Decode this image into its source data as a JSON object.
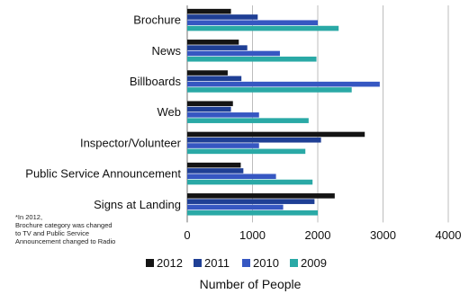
{
  "chart_data": {
    "type": "bar",
    "orientation": "horizontal",
    "categories": [
      "Brochure",
      "News",
      "Billboards",
      "Web",
      "Inspector/Volunteer",
      "Public Service Announcement",
      "Signs at Landing"
    ],
    "series": [
      {
        "name": "2012",
        "color": "#141414",
        "values": [
          670,
          790,
          620,
          700,
          2720,
          820,
          2260
        ]
      },
      {
        "name": "2011",
        "color": "#1f3f95",
        "values": [
          1080,
          920,
          830,
          670,
          2050,
          860,
          1950
        ]
      },
      {
        "name": "2010",
        "color": "#3657c2",
        "values": [
          2000,
          1420,
          2950,
          1100,
          1100,
          1360,
          1470
        ]
      },
      {
        "name": "2009",
        "color": "#2aa9a6",
        "values": [
          2320,
          1980,
          2520,
          1860,
          1810,
          1920,
          2000
        ]
      }
    ],
    "xlabel": "Number of People",
    "xlim": [
      0,
      4000
    ],
    "xticks": [
      0,
      1000,
      2000,
      3000,
      4000
    ],
    "grid": "vertical",
    "legend_position": "bottom"
  },
  "footnote": "*In 2012,\nBrochure category was changed\nto TV and Public Service\nAnnouncement changed to Radio"
}
